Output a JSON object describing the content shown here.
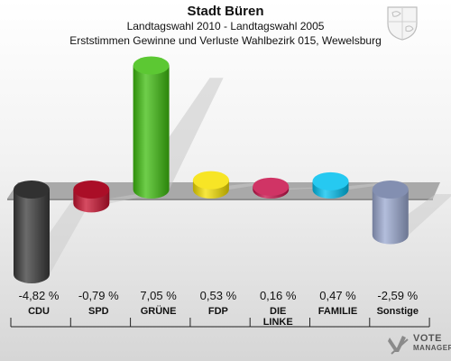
{
  "header": {
    "title": "Stadt Büren",
    "subtitle": "Landtagswahl 2010 - Landtagswahl 2005",
    "subtitle2": "Erststimmen Gewinne und Verluste Wahlbezirk 015, Wewelsburg"
  },
  "chart_data": {
    "type": "bar",
    "title": "Stadt Büren",
    "categories": [
      "CDU",
      "SPD",
      "GRÜNE",
      "FDP",
      "DIE LINKE",
      "FAMILIE",
      "Sonstige"
    ],
    "category_lines": [
      [
        "CDU"
      ],
      [
        "SPD"
      ],
      [
        "GRÜNE"
      ],
      [
        "FDP"
      ],
      [
        "DIE",
        "LINKE"
      ],
      [
        "FAMILIE"
      ],
      [
        "Sonstige"
      ]
    ],
    "values": [
      -4.82,
      -0.79,
      7.05,
      0.53,
      0.16,
      0.47,
      -2.59
    ],
    "value_labels": [
      "-4,82 %",
      "-0,79 %",
      "7,05 %",
      "0,53 %",
      "0,16 %",
      "0,47 %",
      "-2,59 %"
    ],
    "colors": [
      "#3a3a3a",
      "#c8102e",
      "#3fbe0f",
      "#f5e000",
      "#c8104a",
      "#00c0ef",
      "#9aa8d0"
    ],
    "grid": false,
    "legend": "none"
  },
  "watermark": {
    "line1": "VOTE",
    "line2": "MANAGER"
  }
}
